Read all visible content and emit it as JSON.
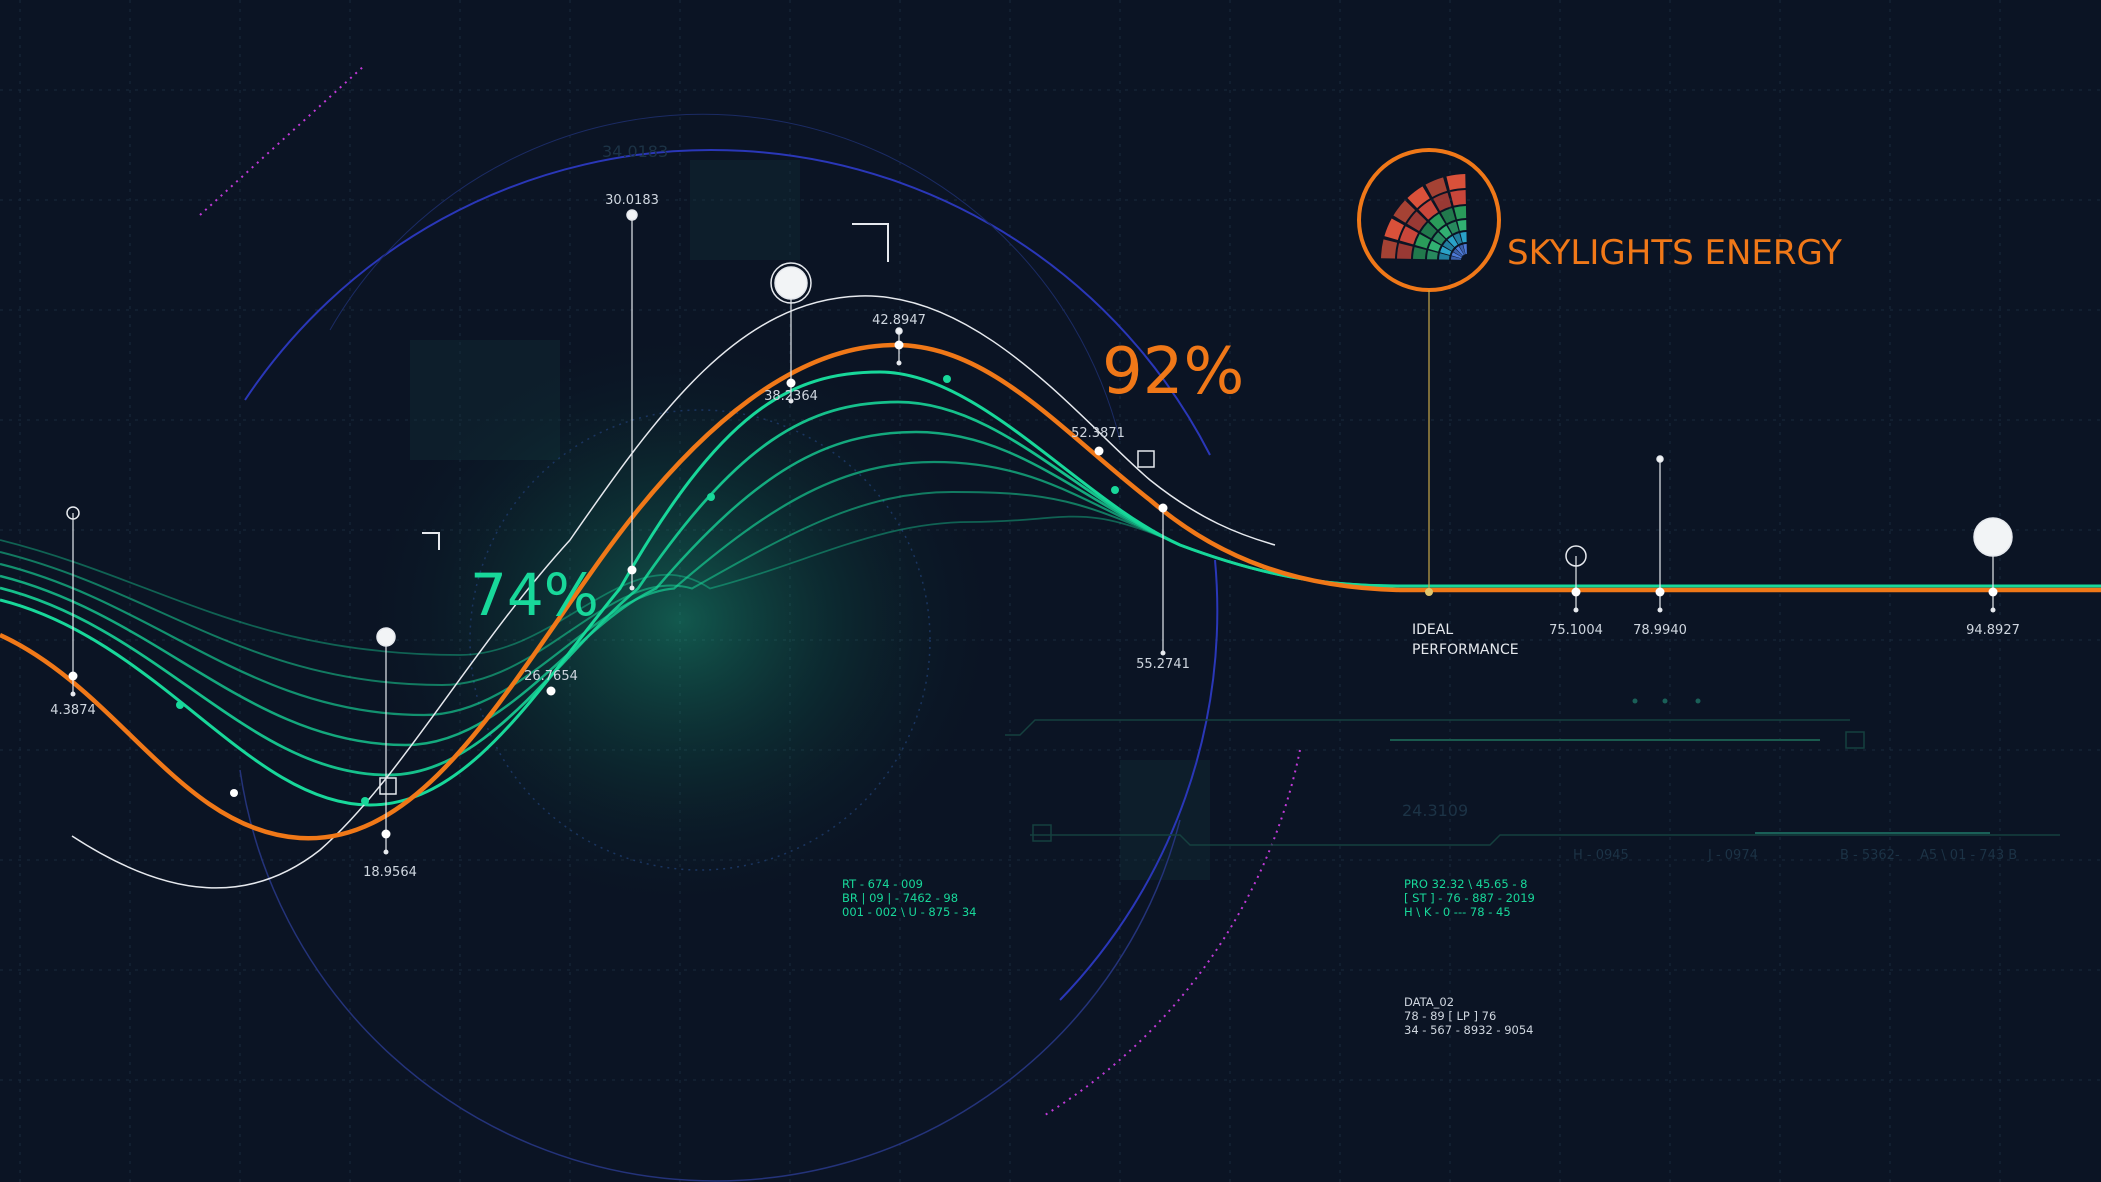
{
  "brand": {
    "name": "SKYLIGHTS ENERGY",
    "logo_icon": "radial-fan-logo-icon"
  },
  "labels": {
    "ideal_line1": "IDEAL",
    "ideal_line2": "PERFORMANCE",
    "pct_left": "74%",
    "pct_right": "92%"
  },
  "colors": {
    "background": "#0b1424",
    "orange": "#f07818",
    "green": "#18d89a",
    "white": "#e6e9ee",
    "blue_ring": "#2a37b8",
    "magenta": "#c03ad8"
  },
  "chart_data": {
    "type": "line",
    "series": [
      {
        "values_note": "",
        "points": [
          {
            "label": "4.3874",
            "value": 4.3874
          },
          {
            "label": "18.9564",
            "value": 18.9564
          },
          {
            "label": "30.0183",
            "value": 30.0183
          },
          {
            "label": "26.7654",
            "value": 26.7654
          },
          {
            "label": "38.2364",
            "value": 38.2364
          },
          {
            "label": "42.8947",
            "value": 42.8947
          },
          {
            "label": "52.3871",
            "value": 52.3871
          },
          {
            "label": "55.2741",
            "value": 55.2741
          },
          {
            "label": "75.1004",
            "value": 75.1004
          },
          {
            "label": "78.9940",
            "value": 78.994
          },
          {
            "label": "94.8927",
            "value": 94.8927
          }
        ]
      }
    ],
    "annotations": [
      "74%",
      "92%",
      "IDEAL PERFORMANCE"
    ]
  },
  "decor": {
    "ghost_top": "34.0183",
    "ghost_mid": "24.3109",
    "ghost_row": [
      "H - 0945",
      "J - 0974",
      "B - 5362-",
      "A5 \\ 01 - 743 B"
    ],
    "block1": [
      "RT - 674 - 009",
      "BR | 09 | - 7462 - 98",
      "001 - 002 \\ U - 875 - 34"
    ],
    "block2": [
      "PRO 32.32 \\ 45.65 - 8",
      "[ ST ] - 76 - 887 - 2019",
      "H \\ K - 0    ---    78 - 45"
    ],
    "block3": [
      "DATA_02",
      "78 - 89 [ LP ] 76",
      "34 - 567 - 8932 - 9054"
    ]
  }
}
